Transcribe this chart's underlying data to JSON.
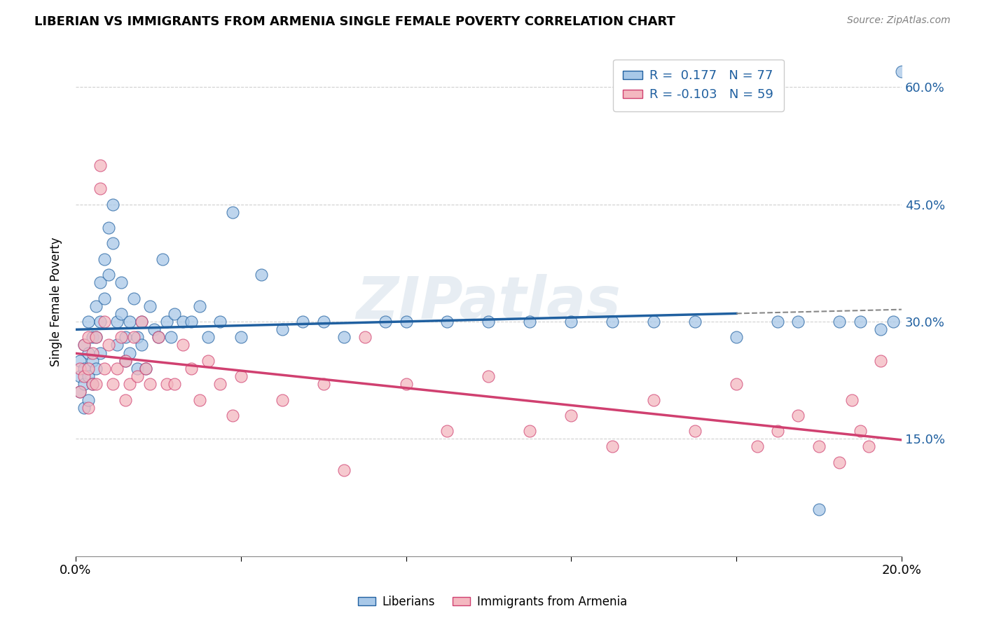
{
  "title": "LIBERIAN VS IMMIGRANTS FROM ARMENIA SINGLE FEMALE POVERTY CORRELATION CHART",
  "source": "Source: ZipAtlas.com",
  "ylabel": "Single Female Poverty",
  "ylim": [
    0.0,
    0.65
  ],
  "xlim": [
    0.0,
    0.2
  ],
  "yticks": [
    0.15,
    0.3,
    0.45,
    0.6
  ],
  "ytick_labels": [
    "15.0%",
    "30.0%",
    "45.0%",
    "60.0%"
  ],
  "blue_color": "#a8c8e8",
  "pink_color": "#f4b8c0",
  "trend_blue": "#2060a0",
  "trend_pink": "#d04070",
  "watermark": "ZIPatlas",
  "background_color": "#ffffff",
  "grid_color": "#d0d0d0",
  "blue_scatter_x": [
    0.001,
    0.001,
    0.001,
    0.002,
    0.002,
    0.002,
    0.002,
    0.003,
    0.003,
    0.003,
    0.003,
    0.004,
    0.004,
    0.004,
    0.005,
    0.005,
    0.005,
    0.006,
    0.006,
    0.006,
    0.007,
    0.007,
    0.008,
    0.008,
    0.009,
    0.009,
    0.01,
    0.01,
    0.011,
    0.011,
    0.012,
    0.012,
    0.013,
    0.013,
    0.014,
    0.015,
    0.015,
    0.016,
    0.016,
    0.017,
    0.018,
    0.019,
    0.02,
    0.021,
    0.022,
    0.023,
    0.024,
    0.026,
    0.028,
    0.03,
    0.032,
    0.035,
    0.038,
    0.04,
    0.045,
    0.05,
    0.055,
    0.06,
    0.065,
    0.075,
    0.08,
    0.09,
    0.1,
    0.11,
    0.12,
    0.13,
    0.14,
    0.15,
    0.16,
    0.17,
    0.175,
    0.18,
    0.185,
    0.19,
    0.195,
    0.198,
    0.2
  ],
  "blue_scatter_y": [
    0.25,
    0.23,
    0.21,
    0.27,
    0.24,
    0.22,
    0.19,
    0.3,
    0.26,
    0.23,
    0.2,
    0.28,
    0.25,
    0.22,
    0.32,
    0.28,
    0.24,
    0.35,
    0.3,
    0.26,
    0.38,
    0.33,
    0.42,
    0.36,
    0.45,
    0.4,
    0.3,
    0.27,
    0.35,
    0.31,
    0.28,
    0.25,
    0.3,
    0.26,
    0.33,
    0.28,
    0.24,
    0.3,
    0.27,
    0.24,
    0.32,
    0.29,
    0.28,
    0.38,
    0.3,
    0.28,
    0.31,
    0.3,
    0.3,
    0.32,
    0.28,
    0.3,
    0.44,
    0.28,
    0.36,
    0.29,
    0.3,
    0.3,
    0.28,
    0.3,
    0.3,
    0.3,
    0.3,
    0.3,
    0.3,
    0.3,
    0.3,
    0.3,
    0.28,
    0.3,
    0.3,
    0.06,
    0.3,
    0.3,
    0.29,
    0.3,
    0.62
  ],
  "pink_scatter_x": [
    0.001,
    0.001,
    0.002,
    0.002,
    0.003,
    0.003,
    0.003,
    0.004,
    0.004,
    0.005,
    0.005,
    0.006,
    0.006,
    0.007,
    0.007,
    0.008,
    0.009,
    0.01,
    0.011,
    0.012,
    0.012,
    0.013,
    0.014,
    0.015,
    0.016,
    0.017,
    0.018,
    0.02,
    0.022,
    0.024,
    0.026,
    0.028,
    0.03,
    0.032,
    0.035,
    0.038,
    0.04,
    0.05,
    0.06,
    0.065,
    0.07,
    0.08,
    0.09,
    0.1,
    0.11,
    0.12,
    0.13,
    0.14,
    0.15,
    0.16,
    0.165,
    0.17,
    0.175,
    0.18,
    0.185,
    0.188,
    0.19,
    0.192,
    0.195
  ],
  "pink_scatter_y": [
    0.24,
    0.21,
    0.27,
    0.23,
    0.28,
    0.24,
    0.19,
    0.26,
    0.22,
    0.28,
    0.22,
    0.5,
    0.47,
    0.3,
    0.24,
    0.27,
    0.22,
    0.24,
    0.28,
    0.25,
    0.2,
    0.22,
    0.28,
    0.23,
    0.3,
    0.24,
    0.22,
    0.28,
    0.22,
    0.22,
    0.27,
    0.24,
    0.2,
    0.25,
    0.22,
    0.18,
    0.23,
    0.2,
    0.22,
    0.11,
    0.28,
    0.22,
    0.16,
    0.23,
    0.16,
    0.18,
    0.14,
    0.2,
    0.16,
    0.22,
    0.14,
    0.16,
    0.18,
    0.14,
    0.12,
    0.2,
    0.16,
    0.14,
    0.25
  ]
}
